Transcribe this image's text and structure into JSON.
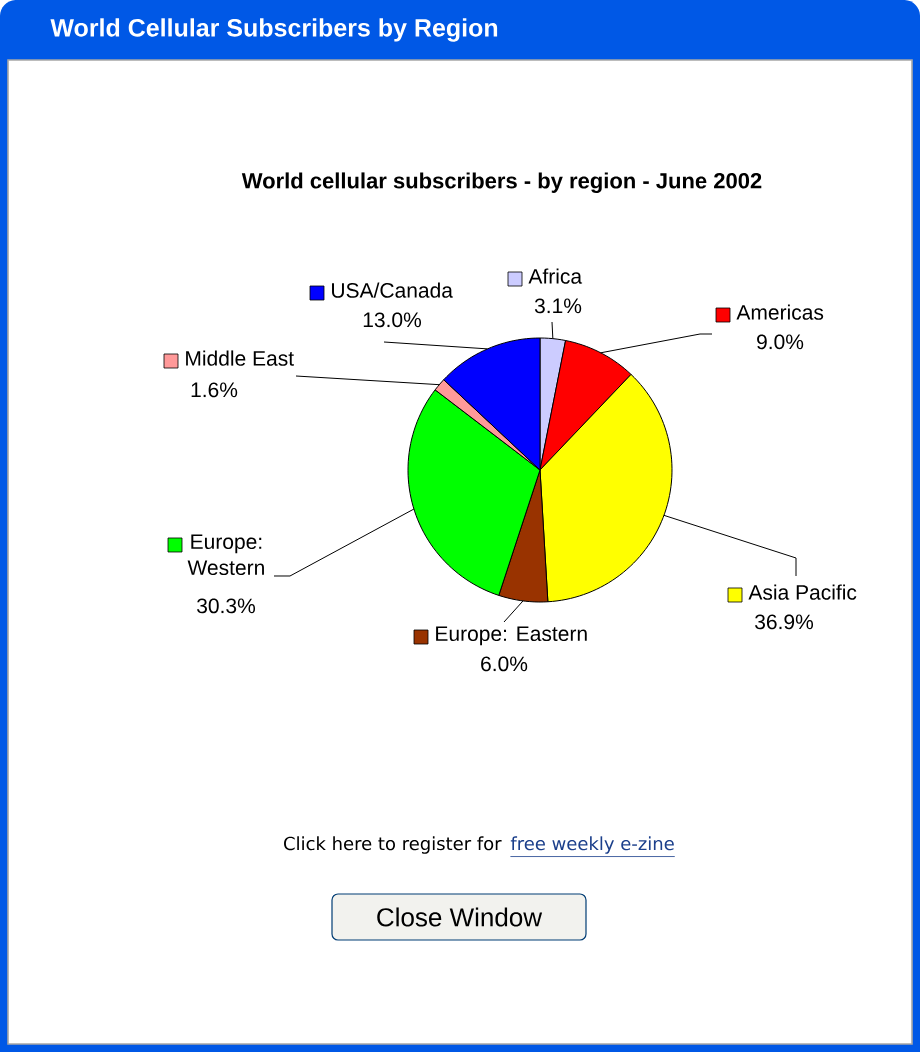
{
  "chart_data": {
    "type": "pie",
    "title": "World cellular subscribers - by region - June 2002",
    "categories": [
      "Africa",
      "Americas",
      "Asia Pacific",
      "Europe: Eastern",
      "Europe: Western",
      "Middle East",
      "USA/Canada"
    ],
    "values": [
      3.1,
      9.0,
      36.9,
      6.0,
      30.3,
      1.6,
      13.0
    ],
    "value_labels": [
      "3.1%",
      "9.0%",
      "36.9%",
      "6.0%",
      "30.3%",
      "1.6%",
      "13.0%"
    ],
    "colors": [
      "#ccccff",
      "#ff0000",
      "#ffff00",
      "#993300",
      "#00ff00",
      "#ff9999",
      "#0000ff"
    ],
    "legend": "center",
    "annotations": [
      "World Cellular Subscribers by Region",
      "Click here to register for",
      "free weekly e-zine",
      "Close Window"
    ]
  }
}
